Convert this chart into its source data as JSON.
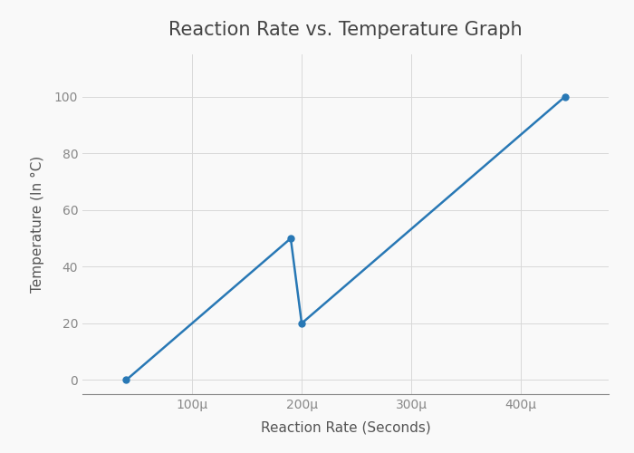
{
  "x": [
    4e-05,
    0.00019,
    0.0002,
    0.00044
  ],
  "y": [
    0,
    50,
    20,
    100
  ],
  "title": "Reaction Rate vs. Temperature Graph",
  "xlabel": "Reaction Rate (Seconds)",
  "ylabel": "Temperature (In °C)",
  "line_color": "#2878b5",
  "marker_color": "#2878b5",
  "bg_color": "#f9f9f9",
  "plot_bg_color": "#f9f9f9",
  "grid_color": "#d8d8d8",
  "title_color": "#444444",
  "label_color": "#555555",
  "tick_color": "#888888",
  "xlim": [
    0.0,
    0.00048
  ],
  "ylim": [
    -5,
    115
  ],
  "xticks": [
    0.0001,
    0.0002,
    0.0003,
    0.0004
  ],
  "yticks": [
    0,
    20,
    40,
    60,
    80,
    100
  ],
  "title_fontsize": 15,
  "axis_label_fontsize": 11
}
